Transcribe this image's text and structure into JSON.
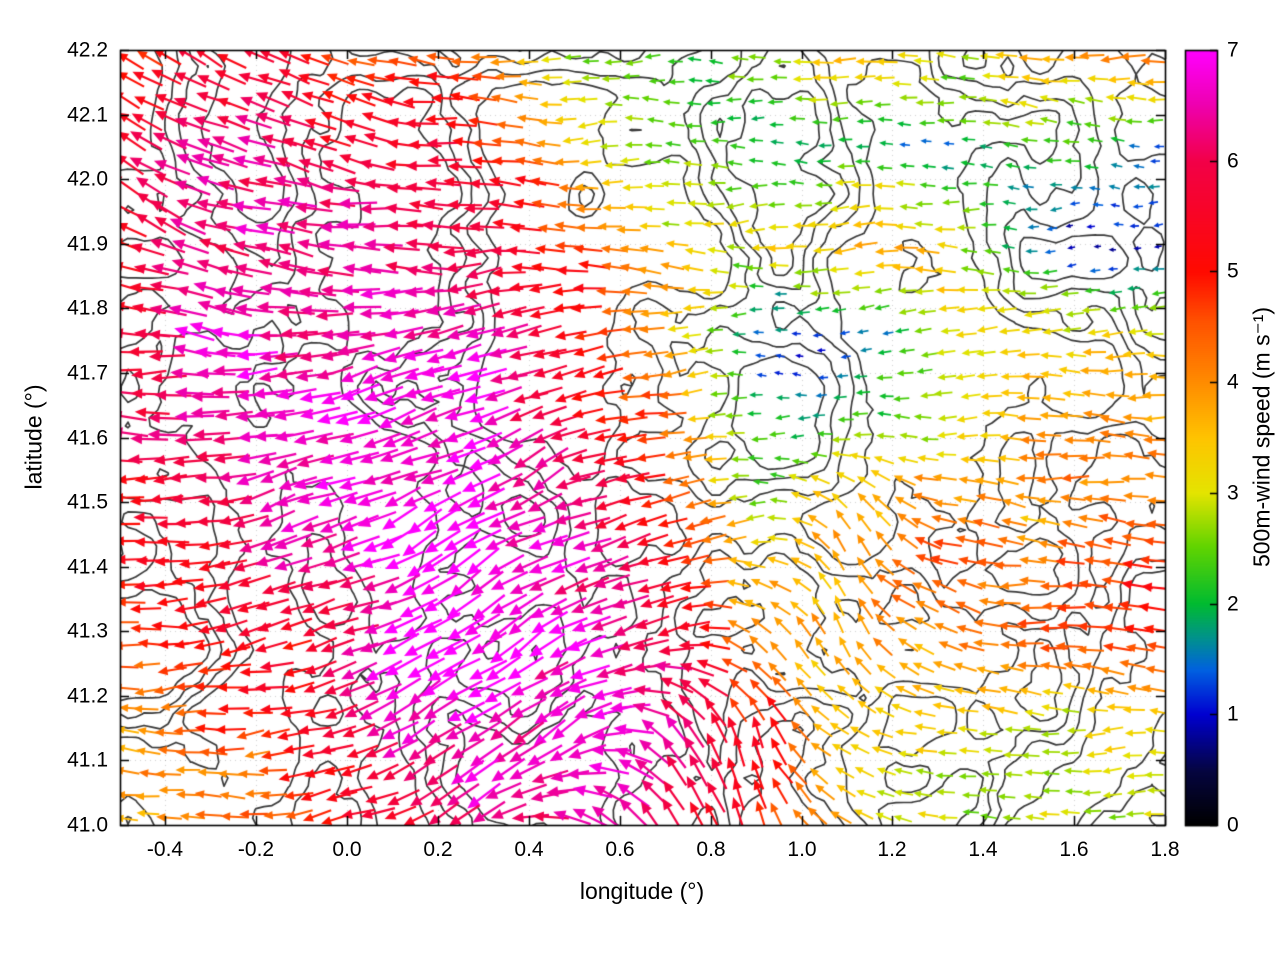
{
  "figure": {
    "background": "#ffffff",
    "axis_color": "#000000"
  },
  "chart_data": {
    "type": "quiver",
    "title": "",
    "xlabel": "longitude (°)",
    "ylabel": "latitude (°)",
    "xlim": [
      -0.5,
      1.8
    ],
    "ylim": [
      41.0,
      42.2
    ],
    "x_ticks": [
      -0.4,
      -0.2,
      0.0,
      0.2,
      0.4,
      0.6,
      0.8,
      1.0,
      1.2,
      1.4,
      1.6,
      1.8
    ],
    "x_tick_labels": [
      "-0.4",
      "-0.2",
      "0.0",
      "0.2",
      "0.4",
      "0.6",
      "0.8",
      "1.0",
      "1.2",
      "1.4",
      "1.6",
      "1.8"
    ],
    "y_ticks": [
      41.0,
      41.1,
      41.2,
      41.3,
      41.4,
      41.5,
      41.6,
      41.7,
      41.8,
      41.9,
      42.0,
      42.1,
      42.2
    ],
    "y_tick_labels": [
      "41.0",
      "41.1",
      "41.2",
      "41.3",
      "41.4",
      "41.5",
      "41.6",
      "41.7",
      "41.8",
      "41.9",
      "42.0",
      "42.1",
      "42.2"
    ],
    "grid": true,
    "legend": "none",
    "colorbar": {
      "label": "500m-wind speed (m s⁻¹)",
      "min": 0,
      "max": 7,
      "ticks": [
        0,
        1,
        2,
        3,
        4,
        5,
        6,
        7
      ],
      "tick_labels": [
        "0",
        "1",
        "2",
        "3",
        "4",
        "5",
        "6",
        "7"
      ],
      "palette_stops": [
        {
          "t": 0.0,
          "color": "#000000"
        },
        {
          "t": 0.07,
          "color": "#050540"
        },
        {
          "t": 0.143,
          "color": "#0000d0"
        },
        {
          "t": 0.2,
          "color": "#0060e0"
        },
        {
          "t": 0.24,
          "color": "#009090"
        },
        {
          "t": 0.286,
          "color": "#00bb30"
        },
        {
          "t": 0.36,
          "color": "#62d400"
        },
        {
          "t": 0.429,
          "color": "#e4e400"
        },
        {
          "t": 0.5,
          "color": "#ffc400"
        },
        {
          "t": 0.571,
          "color": "#ff8c00"
        },
        {
          "t": 0.65,
          "color": "#ff5200"
        },
        {
          "t": 0.714,
          "color": "#ff0a00"
        },
        {
          "t": 0.857,
          "color": "#f20048"
        },
        {
          "t": 0.93,
          "color": "#ee00b0"
        },
        {
          "t": 1.0,
          "color": "#ff00ff"
        }
      ]
    },
    "wind_field": {
      "comment_units": "speed in m/s, direction in degrees (0=east, 90=north, arrows point downwind)",
      "lon_nodes": [
        -0.5,
        -0.3,
        -0.1,
        0.1,
        0.3,
        0.5,
        0.7,
        0.9,
        1.1,
        1.3,
        1.5,
        1.8
      ],
      "lat_nodes": [
        41.0,
        41.15,
        41.3,
        41.45,
        41.6,
        41.75,
        41.9,
        42.05,
        42.2
      ],
      "speed_grid": [
        [
          3.5,
          4.0,
          4.5,
          5.5,
          6.5,
          6.5,
          6.0,
          5.0,
          3.5,
          3.0,
          2.5,
          2.8
        ],
        [
          4.0,
          4.5,
          5.0,
          6.5,
          6.8,
          6.5,
          6.5,
          5.0,
          3.5,
          3.0,
          3.0,
          3.0
        ],
        [
          4.5,
          5.0,
          5.5,
          6.8,
          7.0,
          6.8,
          6.0,
          4.0,
          3.5,
          4.0,
          4.5,
          5.0
        ],
        [
          5.0,
          5.5,
          6.5,
          7.0,
          7.0,
          6.5,
          5.0,
          3.0,
          4.0,
          4.5,
          4.0,
          4.5
        ],
        [
          6.0,
          6.5,
          6.8,
          7.0,
          6.8,
          6.0,
          4.5,
          2.0,
          2.5,
          3.0,
          4.0,
          4.0
        ],
        [
          5.5,
          6.5,
          6.5,
          6.8,
          6.5,
          5.5,
          4.0,
          1.5,
          1.0,
          3.0,
          3.5,
          3.5
        ],
        [
          5.0,
          6.5,
          6.5,
          6.5,
          6.0,
          5.0,
          3.5,
          3.0,
          4.0,
          3.5,
          1.2,
          1.0
        ],
        [
          5.5,
          6.5,
          6.0,
          6.0,
          5.0,
          3.5,
          2.5,
          2.0,
          2.0,
          1.5,
          2.5,
          1.5
        ],
        [
          5.0,
          5.5,
          5.0,
          4.5,
          4.0,
          2.5,
          2.0,
          2.5,
          3.5,
          3.0,
          3.5,
          4.5
        ]
      ],
      "direction_grid_deg": [
        [
          175,
          180,
          185,
          200,
          210,
          150,
          120,
          110,
          150,
          170,
          175,
          180
        ],
        [
          180,
          185,
          190,
          205,
          215,
          215,
          130,
          110,
          150,
          170,
          175,
          180
        ],
        [
          180,
          185,
          195,
          210,
          215,
          210,
          200,
          150,
          120,
          160,
          175,
          180
        ],
        [
          180,
          185,
          200,
          210,
          210,
          205,
          195,
          185,
          110,
          170,
          175,
          170
        ],
        [
          175,
          180,
          195,
          205,
          205,
          200,
          190,
          180,
          175,
          180,
          180,
          175
        ],
        [
          170,
          175,
          185,
          195,
          195,
          190,
          185,
          180,
          180,
          180,
          185,
          180
        ],
        [
          160,
          165,
          170,
          180,
          185,
          180,
          180,
          185,
          180,
          175,
          180,
          185
        ],
        [
          150,
          155,
          160,
          170,
          180,
          180,
          175,
          180,
          185,
          180,
          175,
          180
        ],
        [
          150,
          155,
          160,
          170,
          180,
          185,
          180,
          175,
          180,
          185,
          180,
          180
        ]
      ]
    },
    "contours": {
      "color": "#3a3a3a",
      "levels": [
        0.4,
        0.48,
        0.56,
        0.64
      ],
      "seed": 11
    },
    "noise_seed": 5
  }
}
